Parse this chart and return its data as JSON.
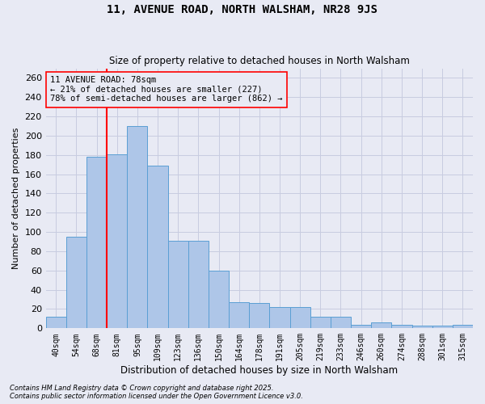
{
  "title": "11, AVENUE ROAD, NORTH WALSHAM, NR28 9JS",
  "subtitle": "Size of property relative to detached houses in North Walsham",
  "xlabel": "Distribution of detached houses by size in North Walsham",
  "ylabel": "Number of detached properties",
  "footer_line1": "Contains HM Land Registry data © Crown copyright and database right 2025.",
  "footer_line2": "Contains public sector information licensed under the Open Government Licence v3.0.",
  "categories": [
    "40sqm",
    "54sqm",
    "68sqm",
    "81sqm",
    "95sqm",
    "109sqm",
    "123sqm",
    "136sqm",
    "150sqm",
    "164sqm",
    "178sqm",
    "191sqm",
    "205sqm",
    "219sqm",
    "233sqm",
    "246sqm",
    "260sqm",
    "274sqm",
    "288sqm",
    "301sqm",
    "315sqm"
  ],
  "values": [
    12,
    95,
    178,
    181,
    210,
    169,
    91,
    91,
    60,
    27,
    26,
    22,
    22,
    12,
    12,
    4,
    6,
    4,
    3,
    3,
    4
  ],
  "bar_color": "#aec6e8",
  "bar_edge_color": "#5a9fd4",
  "grid_color": "#c8cce0",
  "background_color": "#e8eaf4",
  "vline_color": "red",
  "annotation_title": "11 AVENUE ROAD: 78sqm",
  "annotation_line1": "← 21% of detached houses are smaller (227)",
  "annotation_line2": "78% of semi-detached houses are larger (862) →",
  "ylim": [
    0,
    270
  ],
  "yticks": [
    0,
    20,
    40,
    60,
    80,
    100,
    120,
    140,
    160,
    180,
    200,
    220,
    240,
    260
  ]
}
